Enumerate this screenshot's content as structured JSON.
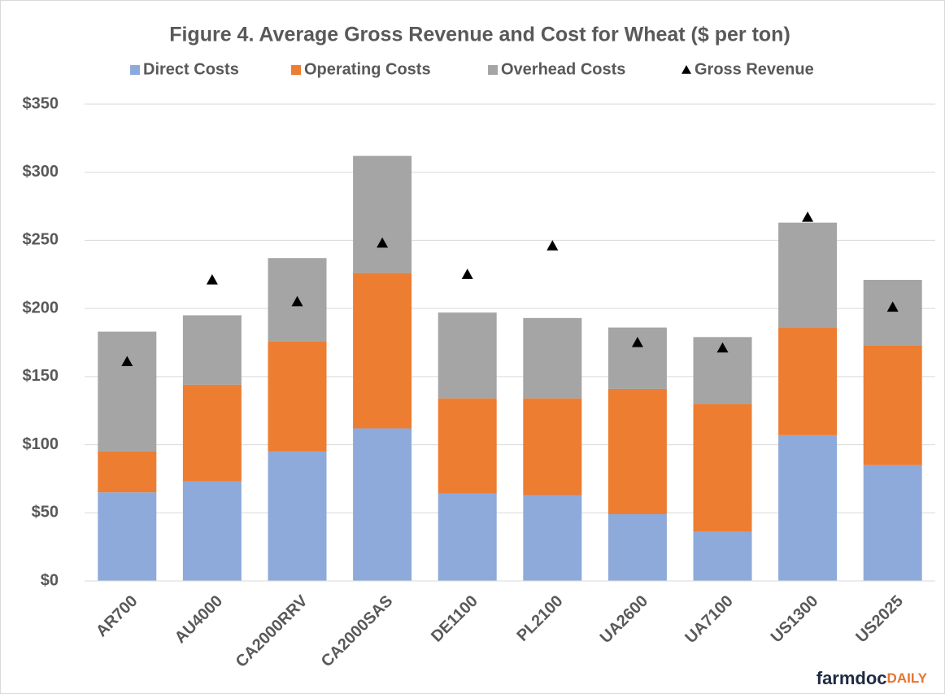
{
  "chart_data": {
    "type": "stacked_bar_with_markers",
    "title": "Figure 4. Average Gross Revenue and Cost for Wheat ($ per ton)",
    "categories": [
      "AR700",
      "AU4000",
      "CA2000RRV",
      "CA2000SAS",
      "DE1100",
      "PL2100",
      "UA2600",
      "UA7100",
      "US1300",
      "US2025"
    ],
    "series": [
      {
        "name": "Direct Costs",
        "color": "#8eaadb",
        "kind": "bar",
        "values": [
          65,
          73,
          95,
          112,
          64,
          63,
          49,
          36,
          107,
          85
        ]
      },
      {
        "name": "Operating Costs",
        "color": "#ed7d31",
        "kind": "bar",
        "values": [
          30,
          71,
          81,
          114,
          70,
          71,
          92,
          94,
          79,
          88
        ]
      },
      {
        "name": "Overhead Costs",
        "color": "#a5a5a5",
        "kind": "bar",
        "values": [
          88,
          51,
          61,
          86,
          63,
          59,
          45,
          49,
          77,
          48
        ]
      },
      {
        "name": "Gross Revenue",
        "color": "#000000",
        "kind": "marker",
        "values": [
          161,
          221,
          205,
          248,
          225,
          246,
          175,
          171,
          267,
          201
        ]
      }
    ],
    "ylim": [
      0,
      350
    ],
    "yticks": [
      {
        "value": 0,
        "label": "$0"
      },
      {
        "value": 50,
        "label": "$50"
      },
      {
        "value": 100,
        "label": "$100"
      },
      {
        "value": 150,
        "label": "$150"
      },
      {
        "value": 200,
        "label": "$200"
      },
      {
        "value": 250,
        "label": "$250"
      },
      {
        "value": 300,
        "label": "$300"
      },
      {
        "value": 350,
        "label": "$350"
      }
    ],
    "grid": true,
    "legend": "top",
    "branding": [
      "farmdoc",
      "DAILY"
    ]
  }
}
